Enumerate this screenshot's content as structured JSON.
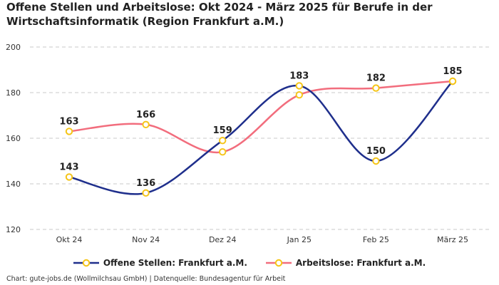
{
  "chart_data": {
    "type": "line",
    "title": "Offene Stellen und Arbeitslose: Okt 2024 - März 2025 für Berufe in der Wirtschaftsinformatik (Region Frankfurt a.M.)",
    "categories": [
      "Okt 24",
      "Nov 24",
      "Dez 24",
      "Jan 25",
      "Feb 25",
      "März 25"
    ],
    "series": [
      {
        "name": "Offene Stellen: Frankfurt a.M.",
        "color": "#1f2f8c",
        "values": [
          143,
          136,
          159,
          183,
          150,
          185
        ]
      },
      {
        "name": "Arbeitslose: Frankfurt a.M.",
        "color": "#f26d7d",
        "values": [
          163,
          166,
          154,
          179,
          182,
          185
        ]
      }
    ],
    "shown_labels": [
      [
        143,
        136,
        159,
        183,
        150,
        185
      ],
      [
        163,
        166,
        null,
        null,
        182,
        null
      ]
    ],
    "yticks": [
      120,
      140,
      160,
      180,
      200
    ],
    "ylim": [
      120,
      200
    ],
    "grid": true,
    "legend_position": "bottom-center",
    "marker_color": "#f5c518"
  },
  "footer": {
    "text": "Chart: gute-jobs.de (Wollmilchsau GmbH) | Datenquelle: Bundesagentur für Arbeit"
  }
}
